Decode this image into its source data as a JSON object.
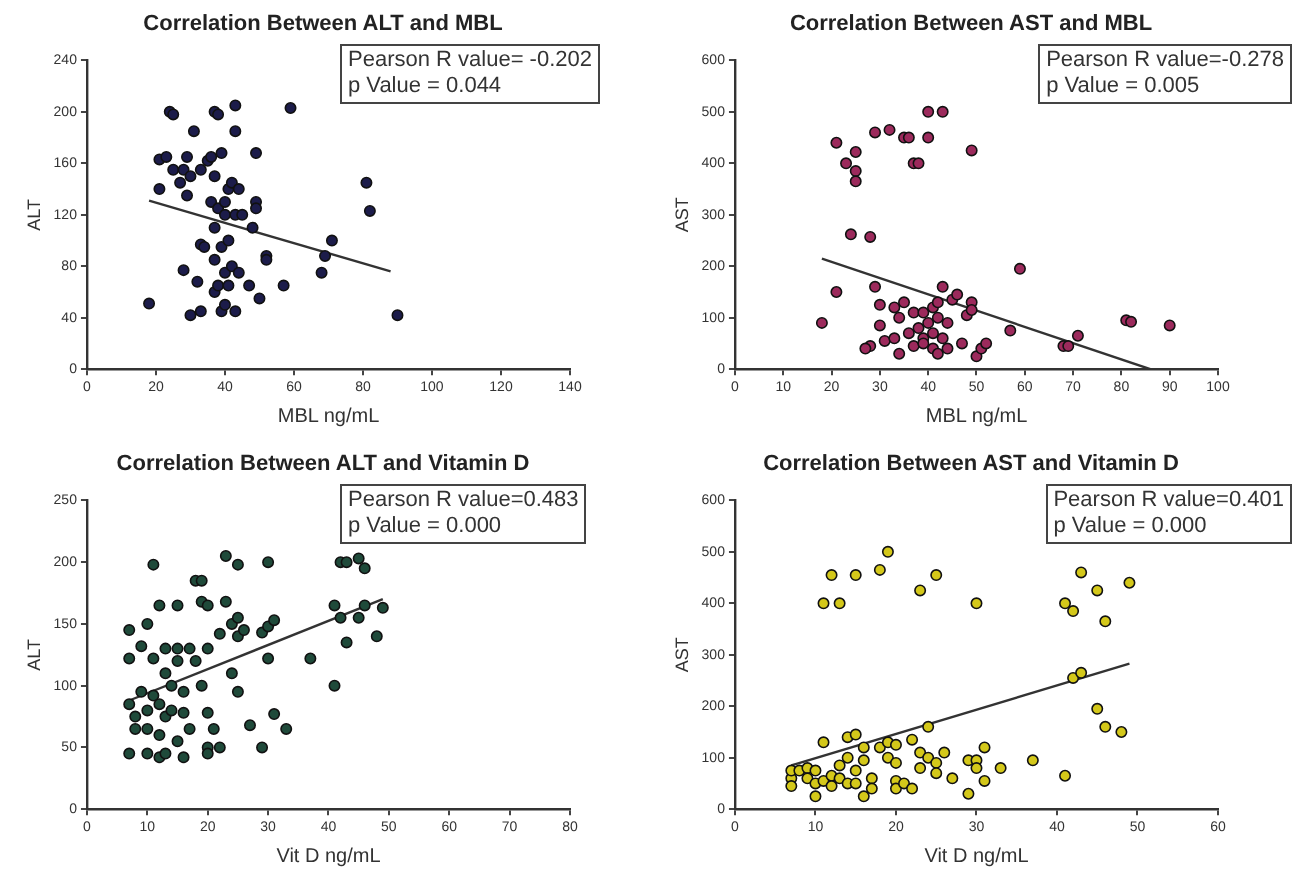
{
  "chart_data": [
    {
      "type": "scatter",
      "title": "Correlation Between ALT and MBL",
      "xlabel": "MBL ng/mL",
      "ylabel": "ALT",
      "annotations": [
        "Pearson R value= -0.202",
        "p Value = 0.044"
      ],
      "grid": false,
      "xlim": [
        0,
        140
      ],
      "xticks": [
        0,
        20,
        40,
        60,
        80,
        100,
        120,
        140
      ],
      "ylim": [
        0,
        240
      ],
      "yticks": [
        0,
        40,
        80,
        120,
        160,
        200,
        240
      ],
      "series": [
        {
          "marker": "circle",
          "color": "#1c1c4a",
          "x": [
            18,
            21,
            21,
            23,
            24,
            25,
            25,
            27,
            28,
            29,
            29,
            30,
            31,
            28,
            30,
            32,
            33,
            33,
            33,
            34,
            35,
            36,
            36,
            37,
            37,
            37,
            37,
            37,
            38,
            38,
            38,
            39,
            39,
            39,
            40,
            40,
            40,
            40,
            41,
            41,
            41,
            42,
            42,
            43,
            43,
            43,
            43,
            44,
            44,
            45,
            47,
            48,
            49,
            49,
            49,
            50,
            52,
            52,
            57,
            59,
            68,
            69,
            71,
            81,
            82,
            90
          ],
          "values": [
            51,
            140,
            163,
            165,
            200,
            198,
            155,
            145,
            155,
            165,
            135,
            150,
            185,
            77,
            42,
            68,
            45,
            97,
            155,
            95,
            162,
            130,
            165,
            200,
            150,
            110,
            85,
            60,
            125,
            198,
            65,
            45,
            168,
            95,
            130,
            120,
            75,
            50,
            100,
            140,
            65,
            145,
            80,
            205,
            185,
            120,
            45,
            140,
            75,
            120,
            65,
            110,
            168,
            130,
            125,
            55,
            88,
            85,
            65,
            203,
            75,
            88,
            100,
            145,
            123,
            42
          ]
        },
        {
          "type": "line",
          "marker": "none",
          "color": "#333333",
          "x": [
            18,
            88
          ],
          "values": [
            131,
            76
          ]
        }
      ]
    },
    {
      "type": "scatter",
      "title": "Correlation Between AST and MBL",
      "xlabel": "MBL ng/mL",
      "ylabel": "AST",
      "annotations": [
        "Pearson R value=-0.278",
        "p Value = 0.005"
      ],
      "grid": false,
      "xlim": [
        0,
        100
      ],
      "xticks": [
        0,
        10,
        20,
        30,
        40,
        50,
        60,
        70,
        80,
        90,
        100
      ],
      "ylim": [
        0,
        600
      ],
      "yticks": [
        0,
        100,
        200,
        300,
        400,
        500,
        600
      ],
      "series": [
        {
          "marker": "circle",
          "color": "#9c2a5c",
          "x": [
            18,
            21,
            21,
            23,
            24,
            25,
            25,
            25,
            28,
            29,
            29,
            30,
            30,
            31,
            32,
            33,
            33,
            34,
            34,
            35,
            35,
            36,
            36,
            37,
            37,
            37,
            38,
            38,
            39,
            39,
            40,
            40,
            40,
            41,
            41,
            41,
            42,
            42,
            42,
            43,
            43,
            43,
            44,
            44,
            45,
            46,
            47,
            48,
            49,
            49,
            49,
            50,
            51,
            52,
            57,
            59,
            68,
            69,
            71,
            81,
            82,
            90,
            28,
            27,
            39
          ],
          "values": [
            90,
            150,
            440,
            400,
            262,
            422,
            385,
            365,
            257,
            160,
            460,
            85,
            125,
            55,
            465,
            120,
            60,
            100,
            30,
            130,
            450,
            70,
            450,
            110,
            400,
            45,
            400,
            80,
            60,
            110,
            450,
            500,
            90,
            120,
            70,
            40,
            130,
            100,
            30,
            500,
            160,
            60,
            90,
            40,
            135,
            145,
            50,
            105,
            425,
            130,
            115,
            25,
            40,
            50,
            75,
            195,
            45,
            45,
            65,
            95,
            92,
            85,
            45,
            40,
            50
          ]
        },
        {
          "type": "line",
          "marker": "none",
          "color": "#333333",
          "x": [
            18,
            86
          ],
          "values": [
            215,
            0
          ]
        }
      ]
    },
    {
      "type": "scatter",
      "title": "Correlation Between ALT and Vitamin D",
      "xlabel": "Vit D ng/mL",
      "ylabel": "ALT",
      "annotations": [
        "Pearson R value=0.483",
        "p Value = 0.000"
      ],
      "grid": false,
      "xlim": [
        0,
        80
      ],
      "xticks": [
        0,
        10,
        20,
        30,
        40,
        50,
        60,
        70,
        80
      ],
      "ylim": [
        0,
        250
      ],
      "yticks": [
        0,
        50,
        100,
        150,
        200,
        250
      ],
      "series": [
        {
          "marker": "circle",
          "color": "#1f4a3a",
          "x": [
            7,
            7,
            7,
            7,
            8,
            8,
            9,
            9,
            10,
            10,
            10,
            10,
            11,
            11,
            11,
            12,
            12,
            12,
            12,
            13,
            13,
            13,
            13,
            14,
            14,
            15,
            15,
            15,
            15,
            16,
            16,
            16,
            17,
            17,
            18,
            18,
            19,
            19,
            19,
            20,
            20,
            20,
            20,
            20,
            21,
            22,
            22,
            23,
            23,
            24,
            24,
            25,
            25,
            25,
            25,
            26,
            27,
            29,
            29,
            30,
            30,
            30,
            31,
            31,
            33,
            37,
            41,
            41,
            42,
            42,
            43,
            43,
            45,
            45,
            46,
            46,
            48,
            49
          ],
          "values": [
            45,
            85,
            145,
            122,
            75,
            65,
            132,
            95,
            150,
            65,
            45,
            80,
            198,
            122,
            92,
            42,
            165,
            85,
            60,
            130,
            110,
            75,
            45,
            100,
            80,
            165,
            130,
            120,
            55,
            42,
            95,
            78,
            130,
            65,
            185,
            120,
            185,
            168,
            100,
            130,
            165,
            78,
            50,
            45,
            65,
            142,
            50,
            205,
            168,
            150,
            110,
            198,
            155,
            140,
            95,
            145,
            68,
            50,
            143,
            148,
            200,
            122,
            153,
            77,
            65,
            122,
            165,
            100,
            200,
            155,
            200,
            135,
            203,
            155,
            195,
            165,
            140,
            163
          ]
        },
        {
          "type": "line",
          "marker": "none",
          "color": "#333333",
          "x": [
            7,
            49
          ],
          "values": [
            88,
            170
          ]
        }
      ]
    },
    {
      "type": "scatter",
      "title": "Correlation Between AST and Vitamin D",
      "xlabel": "Vit D ng/mL",
      "ylabel": "AST",
      "annotations": [
        "Pearson R value=0.401",
        "p Value = 0.000"
      ],
      "grid": false,
      "xlim": [
        0,
        60
      ],
      "xticks": [
        0,
        10,
        20,
        30,
        40,
        50,
        60
      ],
      "ylim": [
        0,
        600
      ],
      "yticks": [
        0,
        100,
        200,
        300,
        400,
        500,
        600
      ],
      "series": [
        {
          "marker": "circle",
          "color": "#d4c81a",
          "x": [
            7,
            7,
            7,
            8,
            9,
            9,
            10,
            10,
            10,
            11,
            11,
            11,
            12,
            12,
            12,
            13,
            13,
            13,
            14,
            14,
            14,
            15,
            15,
            15,
            15,
            16,
            16,
            16,
            17,
            17,
            18,
            18,
            19,
            19,
            19,
            20,
            20,
            20,
            20,
            21,
            22,
            22,
            23,
            23,
            23,
            24,
            24,
            25,
            25,
            25,
            26,
            27,
            29,
            29,
            30,
            30,
            30,
            31,
            31,
            33,
            37,
            41,
            41,
            42,
            42,
            43,
            43,
            45,
            45,
            46,
            46,
            48,
            49
          ],
          "values": [
            60,
            75,
            45,
            75,
            80,
            60,
            25,
            50,
            75,
            400,
            130,
            55,
            455,
            65,
            45,
            400,
            85,
            60,
            100,
            50,
            140,
            455,
            145,
            75,
            50,
            120,
            25,
            95,
            60,
            40,
            465,
            120,
            500,
            100,
            130,
            125,
            90,
            55,
            40,
            50,
            135,
            40,
            425,
            80,
            110,
            160,
            100,
            455,
            90,
            70,
            110,
            60,
            30,
            95,
            400,
            95,
            80,
            55,
            120,
            80,
            95,
            400,
            65,
            385,
            255,
            460,
            265,
            425,
            195,
            365,
            160,
            150,
            440
          ]
        },
        {
          "type": "line",
          "marker": "none",
          "color": "#333333",
          "x": [
            7,
            49
          ],
          "values": [
            85,
            283
          ]
        }
      ]
    }
  ]
}
